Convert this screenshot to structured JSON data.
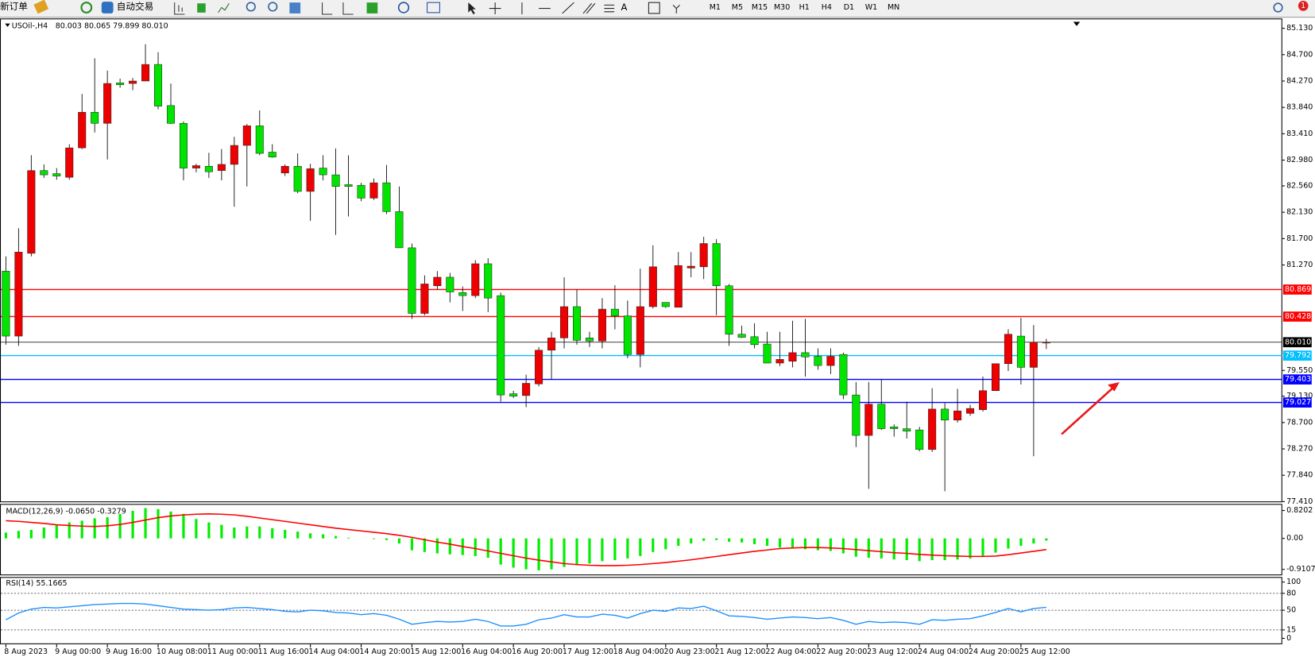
{
  "toolbar": {
    "new_order": "新订单",
    "auto_trading": "自动交易",
    "timeframes": [
      "M1",
      "M5",
      "M15",
      "M30",
      "H1",
      "H4",
      "D1",
      "W1",
      "MN"
    ],
    "notification_count": "1"
  },
  "chart_data": [
    {
      "type": "candlestick",
      "title": "USOil-,H4",
      "subtitle": "80.003 80.065 79.899 80.010",
      "up_color": "#ee0000",
      "down_color": "#00e400",
      "wick_color": "#000000",
      "categories": [
        "8 Aug 2023",
        null,
        null,
        null,
        "9 Aug 00:00",
        null,
        null,
        null,
        "9 Aug 16:00",
        null,
        null,
        null,
        "10 Aug 08:00",
        null,
        null,
        null,
        "11 Aug 00:00",
        null,
        null,
        null,
        "11 Aug 16:00",
        null,
        null,
        null,
        "14 Aug 04:00",
        null,
        null,
        null,
        "14 Aug 20:00",
        null,
        null,
        null,
        "15 Aug 12:00",
        null,
        null,
        null,
        "16 Aug 04:00",
        null,
        null,
        null,
        "16 Aug 20:00",
        null,
        null,
        null,
        "17 Aug 12:00",
        null,
        null,
        null,
        "18 Aug 04:00",
        null,
        null,
        null,
        "20 Aug 23:00",
        null,
        null,
        null,
        "21 Aug 12:00",
        null,
        null,
        null,
        "22 Aug 04:00",
        null,
        null,
        null,
        "22 Aug 20:00",
        null,
        null,
        null,
        "23 Aug 12:00",
        null,
        null,
        null,
        "24 Aug 04:00",
        null,
        null,
        null,
        "24 Aug 20:00",
        null,
        null,
        null,
        "25 Aug 12:00",
        null,
        null
      ],
      "open": [
        81.17,
        80.11,
        81.46,
        82.81,
        82.76,
        82.7,
        83.18,
        83.76,
        83.58,
        84.24,
        84.23,
        84.27,
        84.54,
        83.87,
        83.58,
        82.85,
        82.88,
        82.81,
        82.91,
        83.22,
        83.54,
        83.11,
        82.77,
        82.88,
        82.47,
        82.85,
        82.74,
        82.58,
        82.57,
        82.36,
        82.61,
        82.14,
        81.55,
        80.48,
        80.93,
        81.07,
        80.82,
        80.77,
        81.29,
        80.77,
        79.17,
        79.14,
        79.33,
        79.88,
        80.08,
        80.59,
        80.08,
        80.03,
        80.55,
        80.44,
        79.81,
        80.59,
        80.66,
        80.58,
        81.22,
        81.24,
        81.62,
        80.93,
        80.14,
        80.1,
        79.98,
        79.67,
        79.7,
        79.84,
        79.78,
        79.63,
        79.81,
        79.15,
        78.49,
        79.0,
        78.63,
        78.6,
        78.58,
        78.26,
        78.92,
        78.74,
        78.85,
        78.91,
        79.22,
        79.66,
        80.11,
        79.6,
        80.003
      ],
      "high": [
        81.41,
        81.87,
        83.06,
        82.91,
        82.85,
        83.24,
        84.06,
        84.64,
        84.44,
        84.31,
        84.32,
        84.87,
        84.74,
        84.23,
        83.61,
        82.92,
        83.1,
        83.16,
        83.36,
        83.57,
        83.79,
        83.24,
        82.91,
        83.09,
        82.92,
        83.06,
        83.17,
        83.06,
        82.61,
        82.68,
        82.9,
        82.55,
        81.62,
        81.1,
        81.17,
        81.14,
        80.92,
        81.35,
        81.38,
        80.82,
        79.22,
        79.48,
        79.93,
        80.18,
        81.07,
        80.87,
        80.18,
        80.73,
        80.94,
        80.69,
        81.21,
        81.59,
        80.66,
        81.48,
        81.48,
        81.73,
        81.69,
        80.96,
        80.28,
        80.32,
        80.18,
        80.18,
        80.36,
        80.39,
        79.91,
        79.91,
        79.84,
        79.36,
        79.36,
        79.4,
        78.67,
        79.04,
        78.63,
        79.26,
        79.02,
        79.25,
        78.99,
        79.45,
        79.66,
        80.22,
        80.41,
        80.29,
        80.065
      ],
      "low": [
        79.97,
        79.95,
        81.41,
        82.69,
        82.66,
        82.66,
        83.16,
        83.43,
        82.99,
        84.16,
        84.12,
        84.27,
        83.81,
        83.57,
        82.65,
        82.78,
        82.69,
        82.65,
        82.22,
        82.55,
        83.06,
        83.02,
        82.72,
        82.44,
        81.99,
        82.65,
        81.76,
        82.06,
        82.31,
        82.33,
        82.1,
        81.55,
        80.39,
        80.45,
        80.87,
        80.66,
        80.52,
        80.73,
        80.5,
        79.04,
        79.1,
        78.95,
        79.29,
        79.4,
        79.91,
        79.97,
        79.93,
        79.91,
        80.22,
        79.75,
        79.6,
        80.56,
        80.57,
        80.58,
        81.07,
        81.04,
        80.45,
        79.95,
        80.08,
        79.91,
        79.67,
        79.62,
        79.6,
        79.45,
        79.56,
        79.49,
        79.08,
        78.3,
        77.62,
        78.58,
        78.47,
        78.44,
        78.23,
        78.22,
        77.58,
        78.7,
        78.81,
        78.88,
        79.22,
        79.54,
        79.32,
        78.15,
        79.899
      ],
      "close": [
        80.11,
        81.48,
        82.81,
        82.74,
        82.72,
        83.18,
        83.76,
        83.58,
        84.23,
        84.21,
        84.27,
        84.54,
        83.86,
        83.58,
        82.85,
        82.89,
        82.79,
        82.91,
        83.22,
        83.54,
        83.09,
        83.03,
        82.88,
        82.47,
        82.84,
        82.74,
        82.55,
        82.55,
        82.36,
        82.61,
        82.14,
        81.55,
        80.48,
        80.96,
        81.07,
        80.83,
        80.77,
        81.29,
        80.73,
        79.15,
        79.13,
        79.34,
        79.88,
        80.08,
        80.59,
        80.04,
        80.03,
        80.55,
        80.44,
        79.81,
        80.59,
        81.24,
        80.59,
        81.26,
        81.25,
        81.62,
        80.93,
        80.14,
        80.09,
        79.97,
        79.67,
        79.73,
        79.84,
        79.77,
        79.63,
        79.78,
        79.15,
        78.49,
        79.0,
        78.6,
        78.6,
        78.56,
        78.26,
        78.92,
        78.74,
        78.89,
        78.93,
        79.22,
        79.66,
        80.14,
        79.6,
        80.01,
        80.01
      ],
      "ylim": [
        77.4,
        85.29
      ],
      "yticks": [
        {
          "value": 85.13,
          "label": "85.130"
        },
        {
          "value": 84.7,
          "label": "84.700"
        },
        {
          "value": 84.27,
          "label": "84.270"
        },
        {
          "value": 83.84,
          "label": "83.840"
        },
        {
          "value": 83.41,
          "label": "83.410"
        },
        {
          "value": 82.98,
          "label": "82.980"
        },
        {
          "value": 82.56,
          "label": "82.560"
        },
        {
          "value": 82.13,
          "label": "82.130"
        },
        {
          "value": 81.7,
          "label": "81.700"
        },
        {
          "value": 81.27,
          "label": "81.270"
        },
        {
          "value": 79.55,
          "label": "79.550"
        },
        {
          "value": 79.13,
          "label": "79.130"
        },
        {
          "value": 78.7,
          "label": "78.700"
        },
        {
          "value": 78.27,
          "label": "78.270"
        },
        {
          "value": 77.84,
          "label": "77.840"
        },
        {
          "value": 77.41,
          "label": "77.410"
        }
      ],
      "levels": [
        {
          "value": 80.869,
          "color": "#ff0000"
        },
        {
          "value": 80.428,
          "color": "#ff0000"
        },
        {
          "value": 80.01,
          "label": "80.010",
          "color": "#000000"
        },
        {
          "value": 79.792,
          "color": "#00c0ff"
        },
        {
          "value": 79.403,
          "color": "#0000ff"
        },
        {
          "value": 79.027,
          "color": "#0000ff"
        }
      ]
    },
    {
      "type": "macd",
      "title": "MACD(12,26,9) -0.0650 -0.3279",
      "ylim": [
        -1.086,
        0.988
      ],
      "yticks": [
        0.8202,
        {
          "value": 0,
          "label": "0.00"
        },
        -0.9107
      ],
      "series": [
        {
          "color": "#00ee00",
          "values": [
            0.17,
            0.22,
            0.25,
            0.32,
            0.4,
            0.47,
            0.52,
            0.59,
            0.62,
            0.72,
            0.81,
            0.89,
            0.86,
            0.79,
            0.72,
            0.57,
            0.47,
            0.4,
            0.32,
            0.35,
            0.35,
            0.3,
            0.25,
            0.2,
            0.15,
            0.12,
            0.07,
            0.02,
            0.0,
            -0.02,
            -0.05,
            -0.15,
            -0.35,
            -0.4,
            -0.44,
            -0.47,
            -0.49,
            -0.52,
            -0.57,
            -0.77,
            -0.86,
            -0.91,
            -0.94,
            -0.91,
            -0.84,
            -0.79,
            -0.74,
            -0.67,
            -0.64,
            -0.59,
            -0.52,
            -0.4,
            -0.32,
            -0.22,
            -0.15,
            -0.07,
            -0.05,
            -0.1,
            -0.12,
            -0.17,
            -0.22,
            -0.27,
            -0.3,
            -0.32,
            -0.35,
            -0.37,
            -0.44,
            -0.54,
            -0.57,
            -0.59,
            -0.62,
            -0.64,
            -0.67,
            -0.64,
            -0.64,
            -0.62,
            -0.59,
            -0.52,
            -0.42,
            -0.3,
            -0.22,
            -0.15,
            -0.065
          ]
        },
        {
          "color": "#ff0000",
          "values": [
            0.52,
            0.5,
            0.47,
            0.44,
            0.4,
            0.38,
            0.36,
            0.35,
            0.37,
            0.41,
            0.47,
            0.54,
            0.61,
            0.66,
            0.69,
            0.71,
            0.72,
            0.71,
            0.69,
            0.65,
            0.6,
            0.55,
            0.5,
            0.45,
            0.4,
            0.35,
            0.3,
            0.26,
            0.22,
            0.18,
            0.14,
            0.09,
            0.03,
            -0.04,
            -0.11,
            -0.17,
            -0.24,
            -0.3,
            -0.37,
            -0.44,
            -0.51,
            -0.58,
            -0.64,
            -0.69,
            -0.74,
            -0.77,
            -0.79,
            -0.8,
            -0.8,
            -0.79,
            -0.77,
            -0.74,
            -0.71,
            -0.67,
            -0.63,
            -0.58,
            -0.53,
            -0.48,
            -0.43,
            -0.38,
            -0.34,
            -0.3,
            -0.28,
            -0.27,
            -0.27,
            -0.28,
            -0.3,
            -0.33,
            -0.36,
            -0.39,
            -0.42,
            -0.44,
            -0.47,
            -0.49,
            -0.51,
            -0.52,
            -0.53,
            -0.53,
            -0.52,
            -0.48,
            -0.43,
            -0.38,
            -0.3279
          ]
        }
      ]
    },
    {
      "type": "line",
      "title": "RSI(14) 55.1665",
      "ylim": [
        -10.4,
        107.5
      ],
      "yticks": [
        100,
        80,
        50,
        15,
        0
      ],
      "levels": [
        80,
        50,
        15
      ],
      "series": [
        {
          "color": "#1e90ff",
          "values": [
            33,
            45,
            52,
            55,
            54,
            56,
            58,
            60,
            61,
            62,
            62,
            61,
            58,
            55,
            52,
            51,
            50,
            51,
            54,
            55,
            53,
            51,
            48,
            47,
            50,
            49,
            46,
            45,
            42,
            44,
            41,
            34,
            25,
            28,
            30,
            29,
            30,
            34,
            30,
            22,
            22,
            25,
            33,
            36,
            42,
            38,
            38,
            43,
            41,
            36,
            44,
            50,
            48,
            54,
            53,
            57,
            49,
            40,
            39,
            37,
            34,
            36,
            38,
            37,
            35,
            37,
            32,
            25,
            30,
            28,
            29,
            28,
            25,
            33,
            32,
            34,
            35,
            40,
            46,
            53,
            47,
            53,
            55.1665
          ]
        }
      ]
    }
  ]
}
